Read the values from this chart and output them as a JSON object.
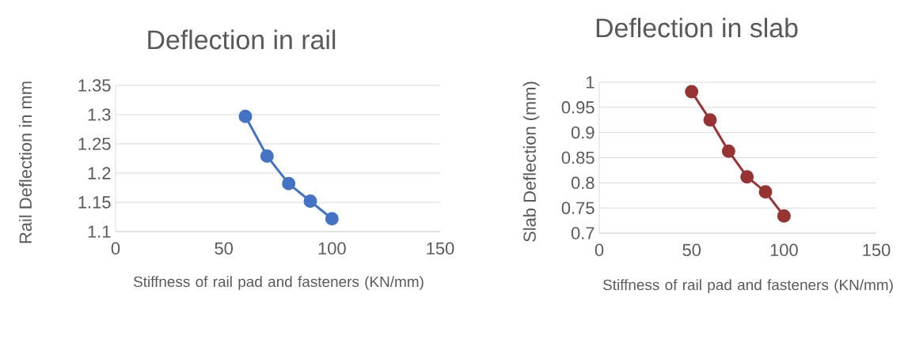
{
  "chart_data": [
    {
      "type": "line",
      "title": "Deflection in rail",
      "xlabel": "Stiffness of rail pad and fasteners (KN/mm)",
      "ylabel": "Rail Deflection in mm",
      "x": [
        60,
        70,
        80,
        90,
        100
      ],
      "series": [
        {
          "color": "#4472c4",
          "values": [
            1.297,
            1.229,
            1.182,
            1.152,
            1.122
          ]
        }
      ],
      "xlim": [
        0,
        150
      ],
      "xticks": [
        0,
        50,
        100,
        150
      ],
      "ylim": [
        1.1,
        1.35
      ],
      "yticks": [
        1.1,
        1.15,
        1.2,
        1.25,
        1.3,
        1.35
      ],
      "grid": "y",
      "marker": "circle",
      "line_style": "solid"
    },
    {
      "type": "line",
      "title": "Deflection in slab",
      "xlabel": "Stiffness of rail pad and fasteners (KN/mm)",
      "ylabel": "Slab Deflection (mm)",
      "x": [
        50,
        60,
        70,
        80,
        90,
        100
      ],
      "series": [
        {
          "color": "#983333",
          "values": [
            0.981,
            0.925,
            0.863,
            0.812,
            0.782,
            0.734
          ]
        }
      ],
      "xlim": [
        0,
        150
      ],
      "xticks": [
        0,
        50,
        100,
        150
      ],
      "ylim": [
        0.7,
        1
      ],
      "yticks": [
        0.7,
        0.75,
        0.8,
        0.85,
        0.9,
        0.95,
        1
      ],
      "grid": "y",
      "marker": "circle",
      "line_style": "solid"
    }
  ]
}
